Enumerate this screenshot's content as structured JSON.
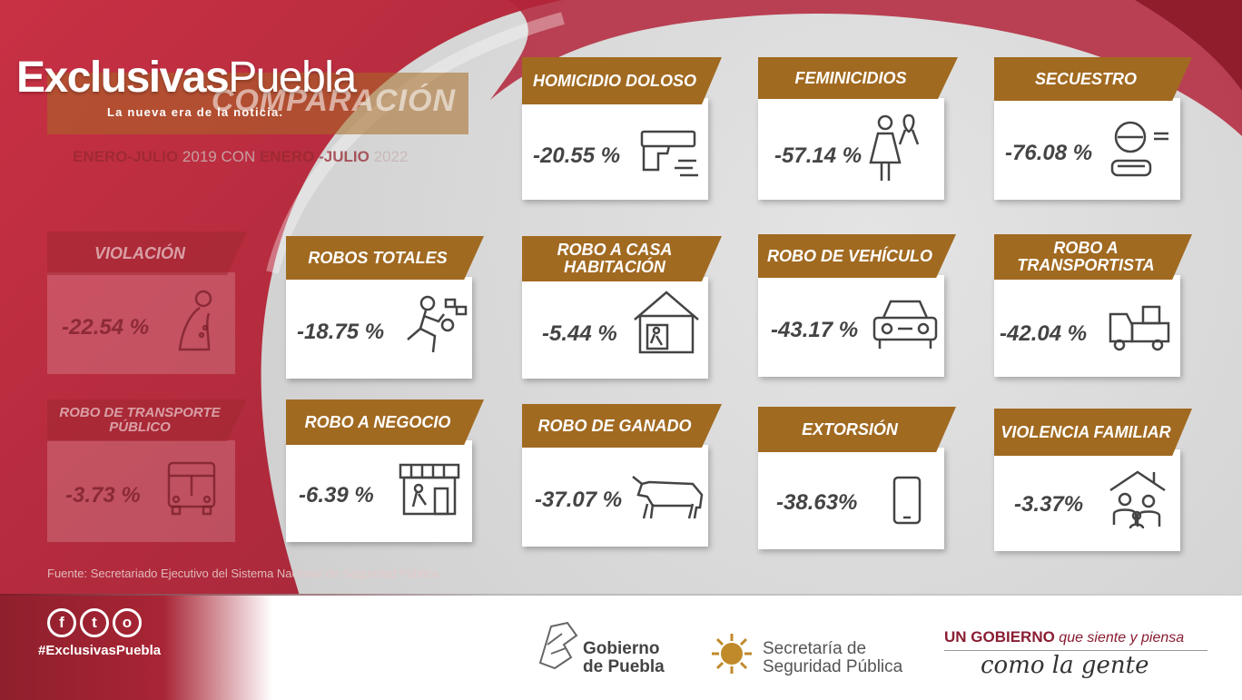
{
  "header": {
    "logo_bold": "Exclusivas",
    "logo_light": "Puebla",
    "tagline": "La nueva era de la noticia.",
    "title_banner": "COMPARACIÓN",
    "comparison": {
      "period1": "ENERO-JULIO",
      "year1": " 2019 CON ",
      "period2": "ENERO -JULIO",
      "year2": " 2022"
    }
  },
  "cards": [
    {
      "label": "HOMICIDIO DOLOSO",
      "value": "-20.55 %",
      "icon": "gun-icon"
    },
    {
      "label": "FEMINICIDIOS",
      "value": "-57.14 %",
      "icon": "woman-ribbon-icon"
    },
    {
      "label": "SECUESTRO",
      "value": "-76.08 %",
      "icon": "kidnapped-person-icon"
    },
    {
      "label": "VIOLACIÓN",
      "value": "-22.54 %",
      "icon": "kneeling-person-icon"
    },
    {
      "label": "ROBOS TOTALES",
      "value": "-18.75 %",
      "icon": "thief-running-icon"
    },
    {
      "label": "ROBO A CASA HABITACIÓN",
      "value": "-5.44 %",
      "icon": "house-burglar-icon"
    },
    {
      "label": "ROBO DE VEHÍCULO",
      "value": "-43.17 %",
      "icon": "car-icon"
    },
    {
      "label": "ROBO A TRANSPORTISTA",
      "value": "-42.04 %",
      "icon": "truck-icon"
    },
    {
      "label": "ROBO DE TRANSPORTE PÚBLICO",
      "value": "-3.73 %",
      "icon": "bus-icon"
    },
    {
      "label": "ROBO A NEGOCIO",
      "value": "-6.39 %",
      "icon": "store-icon"
    },
    {
      "label": "ROBO DE GANADO",
      "value": "-37.07 %",
      "icon": "cow-icon"
    },
    {
      "label": "EXTORSIÓN",
      "value": "-38.63%",
      "icon": "phone-icon"
    },
    {
      "label": "VIOLENCIA FAMILIAR",
      "value": "-3.37%",
      "icon": "family-house-icon"
    }
  ],
  "source": "Fuente: Secretariado Ejecutivo del  Sistema Nacional de Seguridad Pública",
  "footer": {
    "social_icons": [
      "facebook-icon",
      "twitter-icon",
      "instagram-icon"
    ],
    "social_glyphs": [
      "f",
      "t",
      "o"
    ],
    "hashtag": "#ExclusivasPuebla",
    "gobierno_line1": "Gobierno",
    "gobierno_line2": "de Puebla",
    "ssp_line1": "Secretaría de",
    "ssp_line2": "Seguridad Pública",
    "slogan_bold": "UN GOBIERNO",
    "slogan_rest": " que siente y piensa",
    "slogan_script": "como la gente"
  },
  "colors": {
    "accent_gold": "#a16a21",
    "brand_red": "#a82535",
    "value_text": "#444444"
  }
}
